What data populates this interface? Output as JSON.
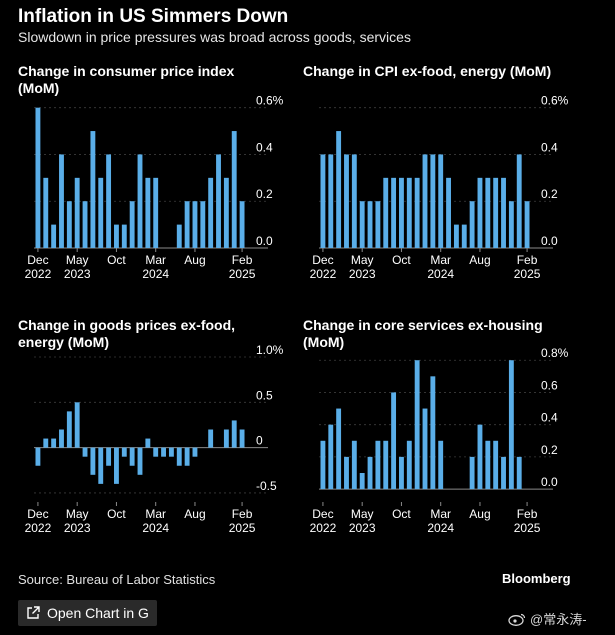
{
  "title": "Inflation in US Simmers Down",
  "subtitle": "Slowdown in price pressures was broad across goods, services",
  "source": "Source: Bureau of Labor Statistics",
  "brand": "Bloomberg",
  "open_chart_label": "Open Chart in G",
  "watermark": "@常永涛-",
  "colors": {
    "bar": "#5aaee8",
    "background": "#000000",
    "grid": "#3c3c3c",
    "axis": "#8a8a8a",
    "text": "#ffffff"
  },
  "x_ticks": [
    {
      "index": 0,
      "line1": "Dec",
      "line2": "2022"
    },
    {
      "index": 5,
      "line1": "May",
      "line2": "2023"
    },
    {
      "index": 10,
      "line1": "Oct",
      "line2": ""
    },
    {
      "index": 15,
      "line1": "Mar",
      "line2": "2024"
    },
    {
      "index": 20,
      "line1": "Aug",
      "line2": ""
    },
    {
      "index": 26,
      "line1": "Feb",
      "line2": "2025"
    }
  ],
  "chart_data": [
    {
      "type": "bar",
      "title": "Change in consumer price index (MoM)",
      "categories": [
        "Dec 2022",
        "Jan 2023",
        "Feb 2023",
        "Mar 2023",
        "Apr 2023",
        "May 2023",
        "Jun 2023",
        "Jul 2023",
        "Aug 2023",
        "Sep 2023",
        "Oct 2023",
        "Nov 2023",
        "Dec 2023",
        "Jan 2024",
        "Feb 2024",
        "Mar 2024",
        "Apr 2024",
        "May 2024",
        "Jun 2024",
        "Jul 2024",
        "Aug 2024",
        "Sep 2024",
        "Oct 2024",
        "Nov 2024",
        "Dec 2024",
        "Jan 2025",
        "Feb 2025"
      ],
      "values": [
        0.6,
        0.3,
        0.1,
        0.4,
        0.2,
        0.3,
        0.2,
        0.5,
        0.3,
        0.4,
        0.1,
        0.1,
        0.2,
        0.4,
        0.3,
        0.3,
        0.0,
        0.0,
        0.1,
        0.2,
        0.2,
        0.2,
        0.3,
        0.4,
        0.3,
        0.5,
        0.2
      ],
      "yticks": [
        0.0,
        0.2,
        0.4,
        0.6
      ],
      "ytick_labels": [
        "0.0",
        "0.2",
        "0.4",
        "0.6%"
      ],
      "ylim": [
        0,
        0.62
      ],
      "xlabel": "",
      "ylabel": ""
    },
    {
      "type": "bar",
      "title": "Change in CPI ex-food, energy (MoM)",
      "categories": [
        "Dec 2022",
        "Jan 2023",
        "Feb 2023",
        "Mar 2023",
        "Apr 2023",
        "May 2023",
        "Jun 2023",
        "Jul 2023",
        "Aug 2023",
        "Sep 2023",
        "Oct 2023",
        "Nov 2023",
        "Dec 2023",
        "Jan 2024",
        "Feb 2024",
        "Mar 2024",
        "Apr 2024",
        "May 2024",
        "Jun 2024",
        "Jul 2024",
        "Aug 2024",
        "Sep 2024",
        "Oct 2024",
        "Nov 2024",
        "Dec 2024",
        "Jan 2025",
        "Feb 2025"
      ],
      "values": [
        0.4,
        0.4,
        0.5,
        0.4,
        0.4,
        0.2,
        0.2,
        0.2,
        0.3,
        0.3,
        0.3,
        0.3,
        0.3,
        0.4,
        0.4,
        0.4,
        0.3,
        0.1,
        0.1,
        0.2,
        0.3,
        0.3,
        0.3,
        0.3,
        0.2,
        0.4,
        0.2
      ],
      "yticks": [
        0.0,
        0.2,
        0.4,
        0.6
      ],
      "ytick_labels": [
        "0.0",
        "0.2",
        "0.4",
        "0.6%"
      ],
      "ylim": [
        0,
        0.62
      ],
      "xlabel": "",
      "ylabel": ""
    },
    {
      "type": "bar",
      "title": "Change in goods prices ex-food, energy (MoM)",
      "categories": [
        "Dec 2022",
        "Jan 2023",
        "Feb 2023",
        "Mar 2023",
        "Apr 2023",
        "May 2023",
        "Jun 2023",
        "Jul 2023",
        "Aug 2023",
        "Sep 2023",
        "Oct 2023",
        "Nov 2023",
        "Dec 2023",
        "Jan 2024",
        "Feb 2024",
        "Mar 2024",
        "Apr 2024",
        "May 2024",
        "Jun 2024",
        "Jul 2024",
        "Aug 2024",
        "Sep 2024",
        "Oct 2024",
        "Nov 2024",
        "Dec 2024",
        "Jan 2025",
        "Feb 2025"
      ],
      "values": [
        -0.2,
        0.1,
        0.1,
        0.2,
        0.4,
        0.5,
        -0.1,
        -0.3,
        -0.4,
        -0.2,
        -0.4,
        -0.1,
        -0.2,
        -0.3,
        0.1,
        -0.1,
        -0.1,
        -0.1,
        -0.2,
        -0.2,
        -0.1,
        0.0,
        0.2,
        0.0,
        0.2,
        0.3,
        0.2
      ],
      "yticks": [
        -0.5,
        0.0,
        0.5,
        1.0
      ],
      "ytick_labels": [
        "-0.5",
        "0",
        "0.5",
        "1.0%"
      ],
      "ylim": [
        -0.6,
        1.0
      ],
      "xlabel": "",
      "ylabel": ""
    },
    {
      "type": "bar",
      "title": "Change in core services ex-housing (MoM)",
      "categories": [
        "Dec 2022",
        "Jan 2023",
        "Feb 2023",
        "Mar 2023",
        "Apr 2023",
        "May 2023",
        "Jun 2023",
        "Jul 2023",
        "Aug 2023",
        "Sep 2023",
        "Oct 2023",
        "Nov 2023",
        "Dec 2023",
        "Jan 2024",
        "Feb 2024",
        "Mar 2024",
        "Apr 2024",
        "May 2024",
        "Jun 2024",
        "Jul 2024",
        "Aug 2024",
        "Sep 2024",
        "Oct 2024",
        "Nov 2024",
        "Dec 2024",
        "Jan 2025",
        "Feb 2025"
      ],
      "values": [
        0.3,
        0.4,
        0.5,
        0.2,
        0.3,
        0.1,
        0.2,
        0.3,
        0.3,
        0.6,
        0.2,
        0.3,
        0.8,
        0.5,
        0.7,
        0.3,
        0.0,
        0.0,
        0.0,
        0.2,
        0.4,
        0.3,
        0.3,
        0.2,
        0.8,
        0.2,
        null
      ],
      "yticks": [
        0.0,
        0.2,
        0.4,
        0.6,
        0.8
      ],
      "ytick_labels": [
        "0.0",
        "0.2",
        "0.4",
        "0.6",
        "0.8%"
      ],
      "ylim": [
        -0.08,
        0.82
      ],
      "xlabel": "",
      "ylabel": ""
    }
  ]
}
